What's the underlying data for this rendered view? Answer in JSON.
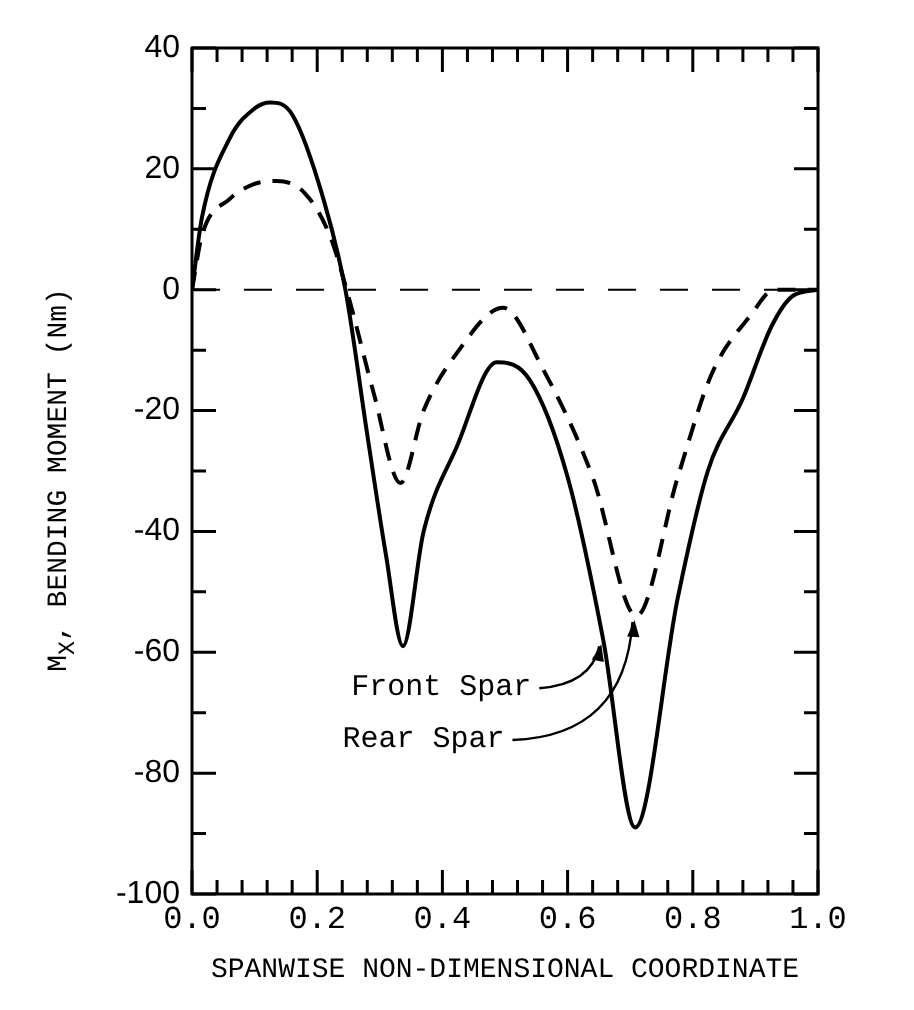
{
  "chart_data": {
    "type": "line",
    "xlabel": "SPANWISE NON-DIMENSIONAL COORDINATE",
    "ylabel": "M$_{X}$, BENDING MOMENT (Nm)",
    "xlim": [
      0,
      1
    ],
    "ylim": [
      -100,
      40
    ],
    "xticks": [
      {
        "value": 0,
        "label": "0.0"
      },
      {
        "value": 0.04,
        "label": null
      },
      {
        "value": 0.08,
        "label": null
      },
      {
        "value": 0.12,
        "label": null
      },
      {
        "value": 0.16,
        "label": null
      },
      {
        "value": 0.2,
        "label": "0.2"
      },
      {
        "value": 0.24,
        "label": null
      },
      {
        "value": 0.28,
        "label": null
      },
      {
        "value": 0.32,
        "label": null
      },
      {
        "value": 0.36,
        "label": null
      },
      {
        "value": 0.4,
        "label": "0.4"
      },
      {
        "value": 0.44,
        "label": null
      },
      {
        "value": 0.48,
        "label": null
      },
      {
        "value": 0.52,
        "label": null
      },
      {
        "value": 0.56,
        "label": null
      },
      {
        "value": 0.6,
        "label": "0.6"
      },
      {
        "value": 0.64,
        "label": null
      },
      {
        "value": 0.68,
        "label": null
      },
      {
        "value": 0.72,
        "label": null
      },
      {
        "value": 0.76,
        "label": null
      },
      {
        "value": 0.8,
        "label": "0.8"
      },
      {
        "value": 0.84,
        "label": null
      },
      {
        "value": 0.88,
        "label": null
      },
      {
        "value": 0.92,
        "label": null
      },
      {
        "value": 0.96,
        "label": null
      },
      {
        "value": 1,
        "label": "1.0"
      }
    ],
    "yticks": [
      -100,
      {
        "value": -90,
        "label": null
      },
      -80,
      {
        "value": -70,
        "label": null
      },
      -60,
      {
        "value": -50,
        "label": null
      },
      -40,
      {
        "value": -30,
        "label": null
      },
      -20,
      {
        "value": -10,
        "label": null
      },
      0,
      {
        "value": 10,
        "label": null
      },
      20,
      {
        "value": 30,
        "label": null
      },
      40
    ],
    "grid": false,
    "legend": false,
    "marker": "none",
    "series": [
      {
        "color": "#000000",
        "line_style": "solid",
        "x": [
          0,
          0.016,
          0.06,
          0.1,
          0.125,
          0.16,
          0.21,
          0.245,
          0.28,
          0.31,
          0.337,
          0.37,
          0.423,
          0.487,
          0.54,
          0.6,
          0.657,
          0.708,
          0.776,
          0.824,
          0.88,
          0.926,
          0.96,
          1
        ],
        "values": [
          0,
          12,
          25,
          30,
          31,
          29,
          15,
          0,
          -24,
          -44,
          -59,
          -40,
          -26,
          -12,
          -15,
          -31,
          -58,
          -89,
          -51,
          -30,
          -18,
          -6,
          -1,
          0
        ]
      },
      {
        "color": "#000000",
        "line_style": "dashed",
        "x": [
          0,
          0.016,
          0.06,
          0.1,
          0.135,
          0.18,
          0.22,
          0.247,
          0.29,
          0.333,
          0.37,
          0.423,
          0.497,
          0.56,
          0.64,
          0.71,
          0.776,
          0.83,
          0.894,
          0.93,
          1
        ],
        "values": [
          0,
          9,
          15,
          17.5,
          18,
          16,
          9,
          0,
          -17,
          -32,
          -20,
          -10.5,
          -3,
          -13,
          -31,
          -54,
          -31,
          -14,
          -4,
          0,
          0
        ]
      }
    ],
    "ref_lines": [
      {
        "axis": "y",
        "value": 0,
        "line_style": "dashed"
      }
    ],
    "annotations": [
      {
        "text": "Front Spar",
        "x": 0.657,
        "y": -58
      },
      {
        "text": "Rear Spar",
        "x": 0.71,
        "y": -54
      }
    ]
  }
}
